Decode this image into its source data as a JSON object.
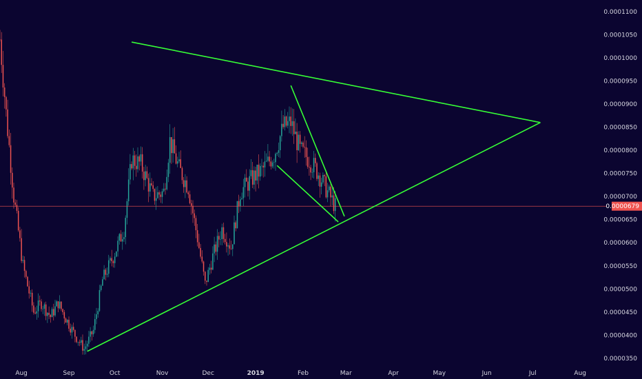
{
  "chart_data": {
    "type": "candlestick",
    "y_axis": {
      "ticks": [
        0.00011,
        0.000105,
        0.0001,
        9.5e-05,
        9e-05,
        8.5e-05,
        8e-05,
        7.5e-05,
        7e-05,
        6.5e-05,
        6e-05,
        5.5e-05,
        5e-05,
        4.5e-05,
        4e-05,
        3.5e-05
      ],
      "tick_labels": [
        "0.0001100",
        "0.0001050",
        "0.0001000",
        "0.0000950",
        "0.0000900",
        "0.0000850",
        "0.0000800",
        "0.0000750",
        "0.0000700",
        "0.0000650",
        "0.0000600",
        "0.0000550",
        "0.0000500",
        "0.0000450",
        "0.0000400",
        "0.0000350"
      ],
      "range": [
        3.35e-05,
        0.0001125
      ]
    },
    "x_axis": {
      "labels": [
        "Aug",
        "Sep",
        "Oct",
        "Nov",
        "Dec",
        "2019",
        "Feb",
        "Mar",
        "Apr",
        "May",
        "Jun",
        "Jul",
        "Aug"
      ],
      "bold_labels": [
        "2019"
      ],
      "dates": [
        "2018-08-01",
        "2018-09-01",
        "2018-10-01",
        "2018-11-01",
        "2018-12-01",
        "2019-01-01",
        "2019-02-01",
        "2019-03-01",
        "2019-04-01",
        "2019-05-01",
        "2019-06-01",
        "2019-07-01",
        "2019-08-01"
      ],
      "range": [
        "2018-07-18",
        "2019-08-18"
      ]
    },
    "current_price": {
      "value": 6.79e-05,
      "label": "0.0000679"
    },
    "price_path": [
      [
        "2018-07-18",
        0.000104
      ],
      [
        "2018-07-22",
        8.8e-05
      ],
      [
        "2018-07-27",
        7e-05
      ],
      [
        "2018-08-02",
        5.5e-05
      ],
      [
        "2018-08-09",
        4.5e-05
      ],
      [
        "2018-08-14",
        4.7e-05
      ],
      [
        "2018-08-20",
        4.4e-05
      ],
      [
        "2018-08-25",
        4.7e-05
      ],
      [
        "2018-08-31",
        4.3e-05
      ],
      [
        "2018-09-05",
        4e-05
      ],
      [
        "2018-09-11",
        3.7e-05
      ],
      [
        "2018-09-17",
        4.1e-05
      ],
      [
        "2018-09-23",
        5.2e-05
      ],
      [
        "2018-09-30",
        5.7e-05
      ],
      [
        "2018-10-07",
        6.3e-05
      ],
      [
        "2018-10-12",
        7.8e-05
      ],
      [
        "2018-10-18",
        7.7e-05
      ],
      [
        "2018-10-26",
        7e-05
      ],
      [
        "2018-11-02",
        7.1e-05
      ],
      [
        "2018-11-06",
        8.2e-05
      ],
      [
        "2018-11-12",
        7.6e-05
      ],
      [
        "2018-11-18",
        7.2e-05
      ],
      [
        "2018-11-24",
        6.1e-05
      ],
      [
        "2018-11-29",
        5.1e-05
      ],
      [
        "2018-12-04",
        5.7e-05
      ],
      [
        "2018-12-10",
        6.3e-05
      ],
      [
        "2018-12-16",
        5.9e-05
      ],
      [
        "2018-12-22",
        7.1e-05
      ],
      [
        "2018-12-30",
        7.4e-05
      ],
      [
        "2019-01-06",
        7.6e-05
      ],
      [
        "2019-01-13",
        7.9e-05
      ],
      [
        "2019-01-19",
        8.5e-05
      ],
      [
        "2019-01-24",
        8.6e-05
      ],
      [
        "2019-01-30",
        8e-05
      ],
      [
        "2019-02-05",
        7.8e-05
      ],
      [
        "2019-02-11",
        7.5e-05
      ],
      [
        "2019-02-17",
        7.1e-05
      ],
      [
        "2019-02-22",
        6.79e-05
      ]
    ],
    "trendlines": [
      {
        "from": [
          "2018-10-12",
          0.0001034
        ],
        "to": [
          "2019-07-06",
          8.6e-05
        ]
      },
      {
        "from": [
          "2018-09-13",
          3.65e-05
        ],
        "to": [
          "2019-07-06",
          8.6e-05
        ]
      },
      {
        "from": [
          "2019-01-24",
          9.4e-05
        ],
        "to": [
          "2019-02-28",
          6.57e-05
        ]
      },
      {
        "from": [
          "2019-01-15",
          7.67e-05
        ],
        "to": [
          "2019-02-24",
          6.45e-05
        ]
      }
    ],
    "grid": false,
    "colors": {
      "up": "#26a69a",
      "down": "#ef5350",
      "trendline": "#36ff36",
      "price_line": "#ef5350",
      "background": "#0b0530"
    }
  }
}
